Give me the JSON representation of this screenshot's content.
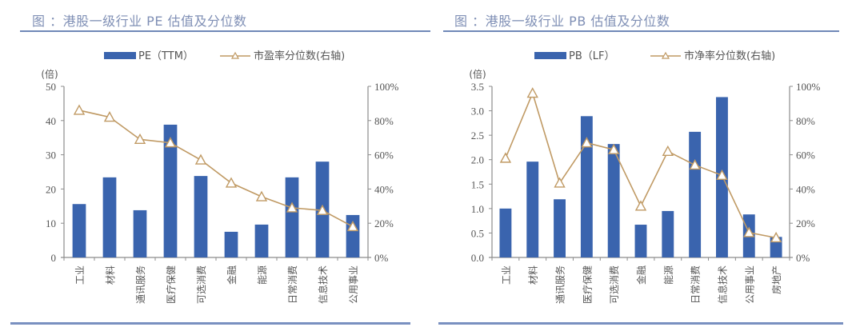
{
  "colors": {
    "bar": "#3a64ae",
    "line": "#c09a64",
    "axis": "#8c8c8c",
    "title": "#7f8fb5",
    "rule": "#7088b8"
  },
  "chart_data": [
    {
      "type": "bar",
      "title": "图  ：港股一级行业 PE 估值及分位数",
      "ylabel": "(倍)",
      "y2label": "",
      "legend": [
        "PE（TTM）",
        "市盈率分位数(右轴)"
      ],
      "legend_position": "top-center",
      "categories": [
        "工业",
        "材料",
        "通讯服务",
        "医疗保健",
        "可选消费",
        "金融",
        "能源",
        "日常消费",
        "信息技术",
        "公用事业"
      ],
      "series": [
        {
          "name": "PE（TTM）",
          "type": "bar",
          "axis": "left",
          "values": [
            15.6,
            23.4,
            13.8,
            38.8,
            23.8,
            7.5,
            9.6,
            23.4,
            28.0,
            12.4
          ]
        },
        {
          "name": "市盈率分位数(右轴)",
          "type": "line",
          "axis": "right",
          "marker": "triangle",
          "values": [
            0.86,
            0.82,
            0.69,
            0.67,
            0.57,
            0.435,
            0.355,
            0.29,
            0.275,
            0.18
          ]
        }
      ],
      "ylim": [
        0,
        50
      ],
      "yticks": [
        "0",
        "10",
        "20",
        "30",
        "40",
        "50"
      ],
      "y2lim": [
        0,
        1
      ],
      "y2ticks": [
        "0%",
        "20%",
        "40%",
        "60%",
        "80%",
        "100%"
      ],
      "grid": false
    },
    {
      "type": "bar",
      "title": "图  ：港股一级行业 PB 估值及分位数",
      "ylabel": "(倍)",
      "legend": [
        "PB（LF）",
        "市净率分位数(右轴)"
      ],
      "legend_position": "top-center",
      "categories": [
        "工业",
        "材料",
        "通讯服务",
        "医疗保健",
        "可选消费",
        "金融",
        "能源",
        "日常消费",
        "信息技术",
        "公用事业",
        "房地产"
      ],
      "series": [
        {
          "name": "PB（LF）",
          "type": "bar",
          "axis": "left",
          "values": [
            1.0,
            1.96,
            1.19,
            2.89,
            2.32,
            0.67,
            0.95,
            2.57,
            3.28,
            0.88,
            0.42
          ]
        },
        {
          "name": "市净率分位数(右轴)",
          "type": "line",
          "axis": "right",
          "marker": "triangle",
          "values": [
            0.58,
            0.96,
            0.435,
            0.67,
            0.63,
            0.3,
            0.62,
            0.54,
            0.48,
            0.145,
            0.115
          ]
        }
      ],
      "ylim": [
        0,
        3.5
      ],
      "yticks": [
        "0.0",
        "0.5",
        "1.0",
        "1.5",
        "2.0",
        "2.5",
        "3.0",
        "3.5"
      ],
      "y2lim": [
        0,
        1
      ],
      "y2ticks": [
        "0%",
        "20%",
        "40%",
        "60%",
        "80%",
        "100%"
      ],
      "grid": false
    }
  ]
}
